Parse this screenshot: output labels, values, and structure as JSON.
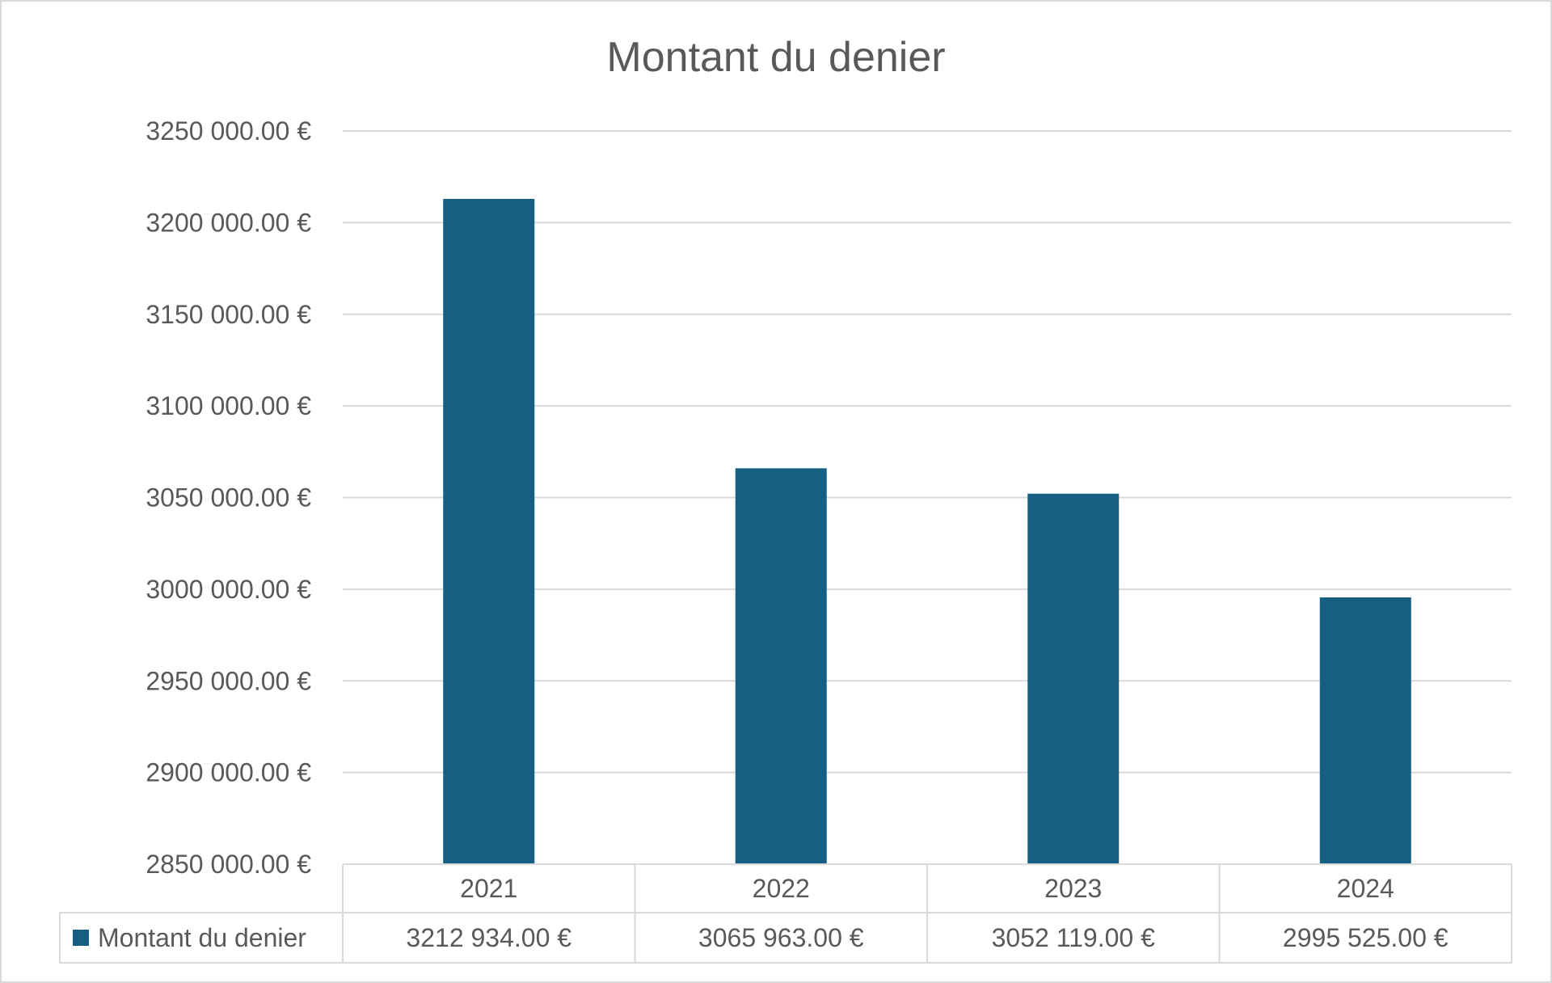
{
  "chart_data": {
    "type": "bar",
    "title": "Montant du denier",
    "categories": [
      "2021",
      "2022",
      "2023",
      "2024"
    ],
    "series": [
      {
        "name": "Montant du denier",
        "values": [
          3212934.0,
          3065963.0,
          3052119.0,
          2995525.0
        ],
        "value_labels": [
          "3212 934.00 €",
          "3065 963.00 €",
          "3052 119.00 €",
          "2995 525.00 €"
        ],
        "color": "#155f82"
      }
    ],
    "ylim": [
      2850000,
      3250000
    ],
    "yticks": [
      2850000,
      2900000,
      2950000,
      3000000,
      3050000,
      3100000,
      3150000,
      3200000,
      3250000
    ],
    "ytick_labels": [
      "2850 000.00 €",
      "2900 000.00 €",
      "2950 000.00 €",
      "3000 000.00 €",
      "3050 000.00 €",
      "3100 000.00 €",
      "3150 000.00 €",
      "3200 000.00 €",
      "3250 000.00 €"
    ],
    "grid": true,
    "legend": "data-table",
    "data_table": true,
    "colors": {
      "bar": "#155f82",
      "grid": "#d9d9d9",
      "text": "#595959",
      "table_border": "#d9d9d9"
    }
  }
}
